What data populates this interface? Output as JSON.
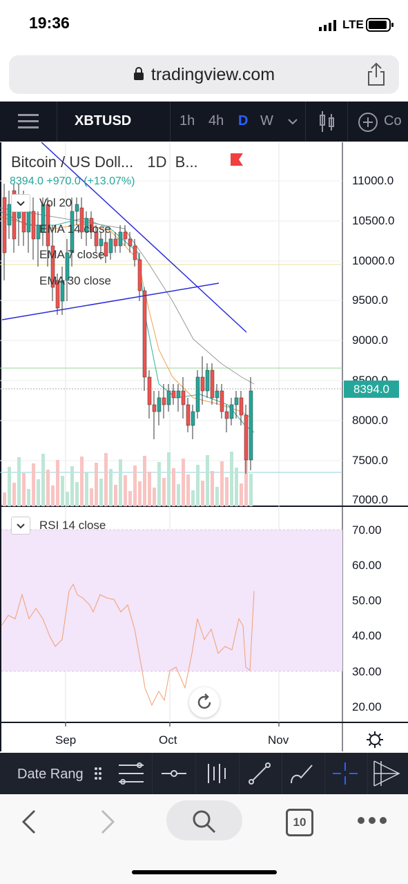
{
  "status": {
    "time": "19:36",
    "network": "LTE"
  },
  "browser": {
    "url": "tradingview.com",
    "tabs_count": "10"
  },
  "toolbar": {
    "symbol": "XBTUSD",
    "intervals": [
      "1h",
      "4h",
      "D",
      "W"
    ],
    "active_interval": "D",
    "compare_label": "Co"
  },
  "chart": {
    "title": "Bitcoin / US Doll...",
    "interval": "1D",
    "exchange": "B...",
    "ohlc_line": "8394.0 +970.0 (+13.07%)",
    "indicators": [
      "Vol  20",
      "EMA  14 close",
      "EMA  7 close",
      "EMA  30 close"
    ],
    "rsi_label": "RSI  14 close",
    "last_price_badge": "8394.0",
    "price_axis": [
      "11000.0",
      "10500.0",
      "10000.0",
      "9500.0",
      "9000.0",
      "8500.0",
      "8000.0",
      "7500.0",
      "7000.0"
    ],
    "rsi_axis": [
      "70.00",
      "60.00",
      "50.00",
      "40.00",
      "30.00",
      "20.00"
    ],
    "time_axis": [
      "Sep",
      "Oct",
      "Nov"
    ],
    "colors": {
      "up": "#26a69a",
      "down": "#ef5350",
      "rsi_band": "#f3e5fa",
      "trendline": "#2b2bd9"
    }
  },
  "bottom": {
    "date_range_label": "Date Rang"
  }
}
